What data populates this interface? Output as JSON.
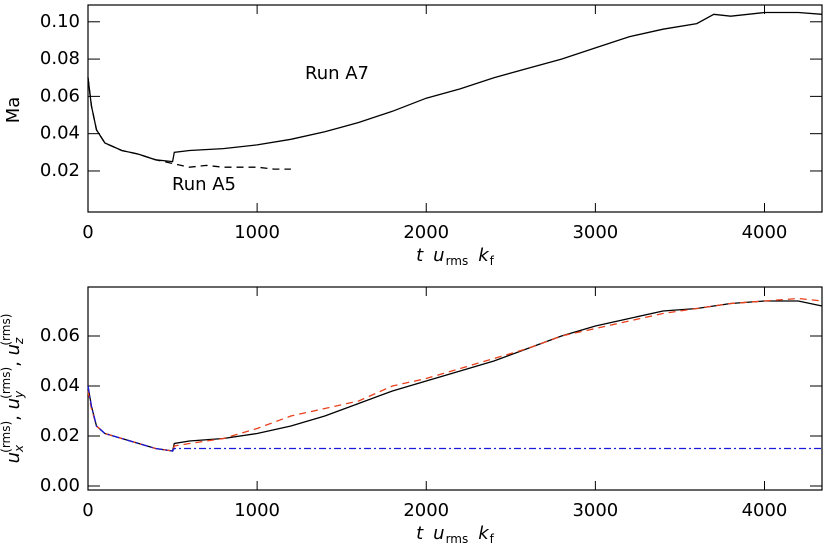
{
  "chart_data": [
    {
      "type": "line",
      "ylabel": "Ma",
      "xlabel": [
        "t",
        "u",
        "rms",
        "k",
        "f"
      ],
      "annotations": [
        "Run A7",
        "Run A5"
      ],
      "xlim": [
        0,
        4340
      ],
      "xticks": [
        0,
        1000,
        2000,
        3000,
        4000
      ],
      "ylim": [
        -0.002,
        0.109
      ],
      "yticks": [
        0.02,
        0.04,
        0.06,
        0.08,
        {
          "value": 0.1,
          "label": "0.10"
        }
      ],
      "series": [
        {
          "color": "#000000",
          "dash": "solid",
          "x": [
            0,
            20,
            50,
            100,
            200,
            300,
            400,
            500,
            510,
            600,
            800,
            1000,
            1200,
            1400,
            1600,
            1800,
            2000,
            2200,
            2400,
            2600,
            2800,
            3000,
            3200,
            3400,
            3600,
            3700,
            3800,
            4000,
            4200,
            4340
          ],
          "values": [
            0.07,
            0.055,
            0.042,
            0.035,
            0.031,
            0.029,
            0.026,
            0.025,
            0.03,
            0.031,
            0.032,
            0.034,
            0.037,
            0.041,
            0.046,
            0.052,
            0.059,
            0.064,
            0.07,
            0.075,
            0.08,
            0.086,
            0.092,
            0.096,
            0.099,
            0.104,
            0.103,
            0.105,
            0.105,
            0.104
          ]
        },
        {
          "color": "#000000",
          "dash": "dashed",
          "x": [
            0,
            20,
            50,
            100,
            200,
            300,
            400,
            500,
            600,
            700,
            800,
            900,
            1000,
            1100,
            1200
          ],
          "values": [
            0.07,
            0.055,
            0.042,
            0.035,
            0.031,
            0.029,
            0.026,
            0.024,
            0.022,
            0.023,
            0.022,
            0.022,
            0.022,
            0.021,
            0.021
          ]
        }
      ]
    },
    {
      "type": "line",
      "ylabel": [
        "u",
        "x",
        "(rms)",
        ", ",
        "u",
        "y",
        "(rms)",
        ", ",
        "u",
        "z",
        "(rms)"
      ],
      "xlabel": [
        "t",
        "u",
        "rms",
        "k",
        "f"
      ],
      "xlim": [
        0,
        4340
      ],
      "xticks": [
        0,
        1000,
        2000,
        3000,
        4000
      ],
      "ylim": [
        -0.0016,
        0.0796
      ],
      "yticks": [
        {
          "value": 0,
          "label": "0.00"
        },
        0.02,
        0.04,
        0.06
      ],
      "series": [
        {
          "color": "#000000",
          "dash": "solid",
          "x": [
            0,
            20,
            50,
            100,
            200,
            300,
            400,
            500,
            510,
            600,
            800,
            1000,
            1200,
            1400,
            1600,
            1800,
            2000,
            2200,
            2400,
            2600,
            2800,
            3000,
            3200,
            3400,
            3600,
            3700,
            3800,
            4000,
            4200,
            4340
          ],
          "values": [
            0.04,
            0.032,
            0.024,
            0.021,
            0.019,
            0.017,
            0.015,
            0.014,
            0.017,
            0.018,
            0.019,
            0.021,
            0.024,
            0.028,
            0.033,
            0.038,
            0.042,
            0.046,
            0.05,
            0.055,
            0.06,
            0.064,
            0.067,
            0.07,
            0.071,
            0.072,
            0.073,
            0.074,
            0.074,
            0.072
          ]
        },
        {
          "color": "#e8401c",
          "dash": "dashed",
          "x": [
            0,
            20,
            50,
            100,
            200,
            300,
            400,
            500,
            510,
            600,
            800,
            1000,
            1200,
            1400,
            1600,
            1800,
            2000,
            2200,
            2400,
            2600,
            2800,
            3000,
            3200,
            3400,
            3600,
            3700,
            3800,
            4000,
            4200,
            4340
          ],
          "values": [
            0.038,
            0.031,
            0.024,
            0.021,
            0.019,
            0.017,
            0.015,
            0.014,
            0.016,
            0.017,
            0.019,
            0.023,
            0.028,
            0.031,
            0.034,
            0.04,
            0.043,
            0.047,
            0.051,
            0.055,
            0.06,
            0.063,
            0.066,
            0.069,
            0.071,
            0.072,
            0.073,
            0.074,
            0.075,
            0.074
          ]
        },
        {
          "color": "#1a1adc",
          "dash": "dashdot",
          "x": [
            0,
            20,
            50,
            100,
            200,
            300,
            400,
            500,
            510,
            600,
            800,
            1000,
            1200,
            1400,
            1600,
            1800,
            2000,
            2200,
            2400,
            2600,
            2800,
            3000,
            3200,
            3400,
            3600,
            3700,
            3800,
            4000,
            4200,
            4340
          ],
          "values": [
            0.04,
            0.032,
            0.024,
            0.021,
            0.019,
            0.017,
            0.015,
            0.014,
            0.015,
            0.015,
            0.015,
            0.015,
            0.015,
            0.015,
            0.015,
            0.015,
            0.015,
            0.015,
            0.015,
            0.015,
            0.015,
            0.015,
            0.015,
            0.015,
            0.015,
            0.015,
            0.015,
            0.015,
            0.015,
            0.015
          ]
        }
      ]
    }
  ]
}
